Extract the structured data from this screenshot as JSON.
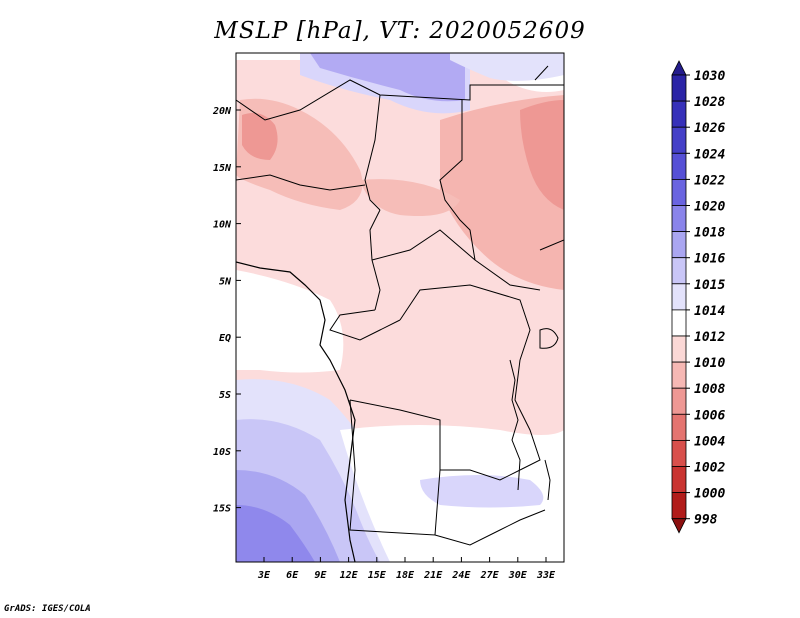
{
  "title": "MSLP [hPa], VT: 2020052609",
  "credit": "GrADS: IGES/COLA",
  "map": {
    "lat_labels": [
      "20N",
      "15N",
      "10N",
      "5N",
      "EQ",
      "5S",
      "10S",
      "15S"
    ],
    "lon_labels": [
      "3E",
      "6E",
      "9E",
      "12E",
      "15E",
      "18E",
      "21E",
      "24E",
      "27E",
      "30E",
      "33E"
    ]
  },
  "colorbar": {
    "levels": [
      "1030",
      "1028",
      "1026",
      "1024",
      "1022",
      "1020",
      "1018",
      "1016",
      "1015",
      "1014",
      "1012",
      "1010",
      "1008",
      "1006",
      "1004",
      "1002",
      "1000",
      "998"
    ],
    "colors": [
      "#241c8c",
      "#2b24a6",
      "#3630b9",
      "#4540c8",
      "#5650d6",
      "#6a64e0",
      "#8a84ea",
      "#aaa6f1",
      "#c9c6f7",
      "#e3e2fb",
      "#ffffff",
      "#fbd8d6",
      "#f6b8b4",
      "#ee9894",
      "#e47470",
      "#d8504c",
      "#c93431",
      "#b11c1a",
      "#8c1010"
    ]
  },
  "regions": {
    "north_high_color": "#b2aaf3",
    "south_high_color": "#8f88ec",
    "low_color": "#ee9894"
  }
}
